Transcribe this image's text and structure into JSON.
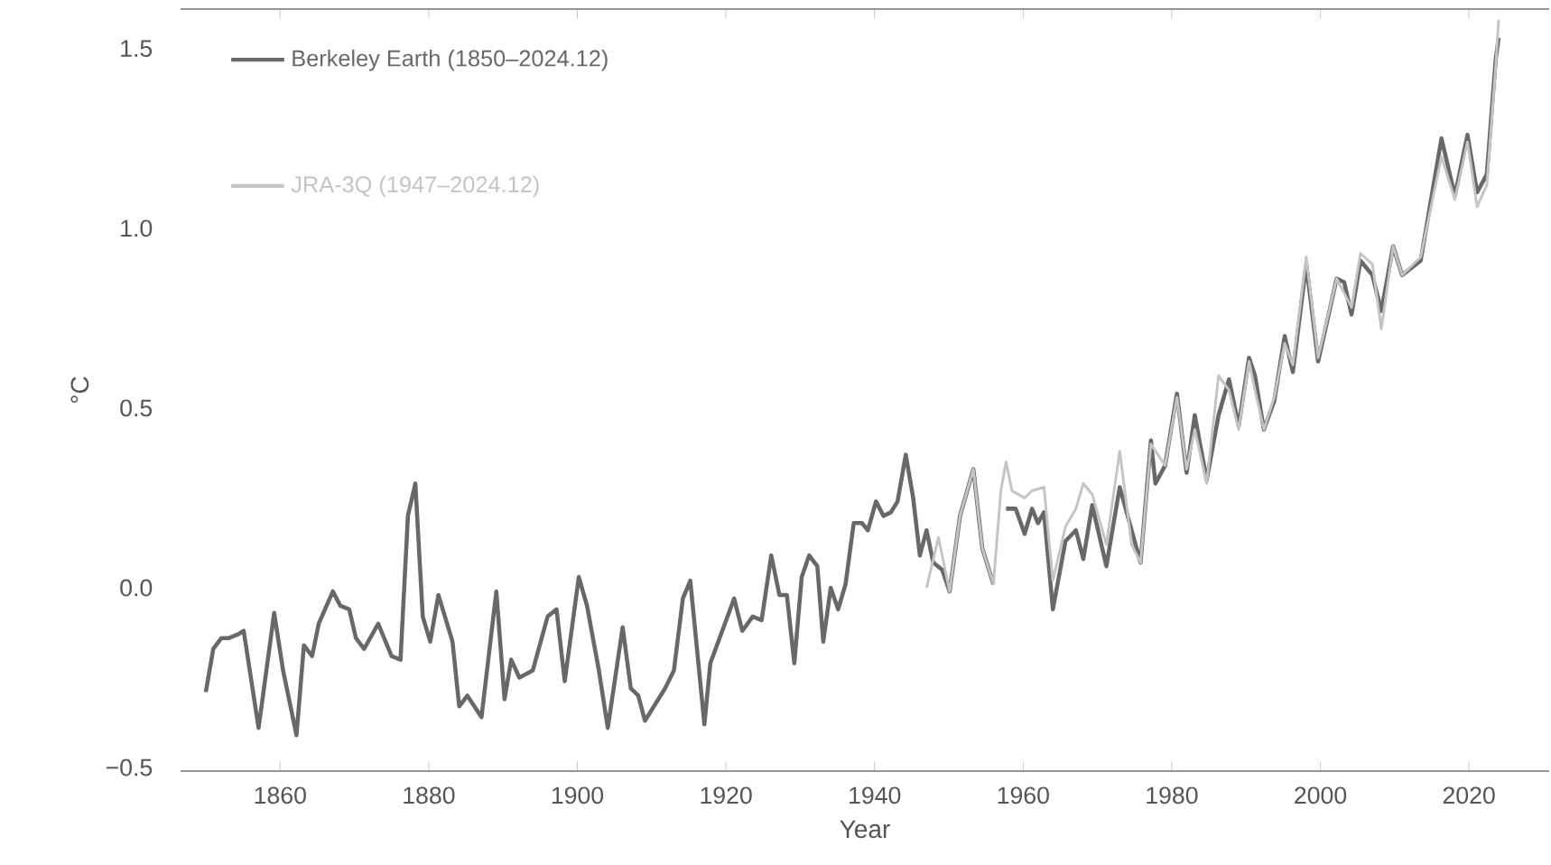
{
  "chart_data": {
    "type": "line",
    "xlabel": "Year",
    "ylabel": "°C",
    "xlim": [
      1846.6,
      2030.8
    ],
    "ylim": [
      -0.51,
      1.61
    ],
    "xticks": [
      1860,
      1880,
      1900,
      1920,
      1940,
      1960,
      1980,
      2000,
      2020
    ],
    "yticks": [
      {
        "value": -0.5,
        "label": "−0.5"
      },
      {
        "value": 0,
        "label": "0.0"
      },
      {
        "value": 0.5,
        "label": "0.5"
      },
      {
        "value": 1,
        "label": "1.0"
      },
      {
        "value": 1.5,
        "label": "1.5"
      }
    ],
    "legend": "top left",
    "series": [
      {
        "name": "Berkeley Earth (1850–2024.12)",
        "color": "#68686c",
        "x": [
          1850.0,
          1851.0,
          1852.1,
          1853.1,
          1854.3,
          1855.1,
          1857.1,
          1859.2,
          1860.4,
          1862.2,
          1863.2,
          1864.3,
          1865.2,
          1867.1,
          1868.1,
          1869.3,
          1870.2,
          1871.3,
          1873.2,
          1875.0,
          1876.2,
          1877.2,
          1878.2,
          1879.2,
          1880.2,
          1881.3,
          1883.2,
          1884.1,
          1885.2,
          1887.1,
          1889.1,
          1890.2,
          1891.1,
          1892.2,
          1894.0,
          1896.0,
          1897.2,
          1898.3,
          1900.2,
          1901.3,
          1902.9,
          1904.1,
          1906.1,
          1907.2,
          1908.2,
          1909.1,
          1911.8,
          1913.0,
          1914.2,
          1915.2,
          1917.1,
          1917.9,
          1921.1,
          1922.2,
          1923.6,
          1924.8,
          1926.1,
          1927.2,
          1928.2,
          1929.2,
          1930.2,
          1931.2,
          1932.3,
          1933.1,
          1934.1,
          1935.1,
          1936.1,
          1937.2,
          1938.3,
          1939.1,
          1940.2,
          1941.2,
          1942.2,
          1943.1,
          1944.2,
          1945.2,
          1946.1,
          1947.0,
          1947.9,
          1949.1,
          1950.1,
          1951.5,
          1953.3,
          1954.5,
          1956.0,
          1956.9,
          1957.7,
          1959.0,
          1960.2,
          1961.2,
          1962.0,
          1962.8,
          1964.0,
          1965.7,
          1967.1,
          1968.1,
          1969.3,
          1971.2,
          1973.0,
          1974.6,
          1975.8,
          1977.2,
          1977.8,
          1979.1,
          1980.7,
          1982.0,
          1983.1,
          1984.7,
          1986.3,
          1987.7,
          1989.0,
          1990.4,
          1991.2,
          1992.4,
          1993.8,
          1995.2,
          1996.3,
          1998.1,
          1999.7,
          2002.2,
          2003.2,
          2004.2,
          2005.4,
          2007.0,
          2008.2,
          2009.8,
          2011.0,
          2013.5,
          2016.3,
          2018.1,
          2019.8,
          2021.1,
          2022.4,
          2023.6,
          2024.0
        ],
        "values": [
          -0.29,
          -0.17,
          -0.14,
          -0.14,
          -0.13,
          -0.12,
          -0.39,
          -0.07,
          -0.23,
          -0.41,
          -0.16,
          -0.19,
          -0.1,
          -0.01,
          -0.05,
          -0.06,
          -0.14,
          -0.17,
          -0.1,
          -0.19,
          -0.2,
          0.2,
          0.29,
          -0.08,
          -0.15,
          -0.02,
          -0.15,
          -0.33,
          -0.3,
          -0.36,
          -0.01,
          -0.31,
          -0.2,
          -0.25,
          -0.23,
          -0.08,
          -0.06,
          -0.26,
          0.03,
          -0.05,
          -0.23,
          -0.39,
          -0.11,
          -0.28,
          -0.3,
          -0.37,
          -0.28,
          -0.23,
          -0.03,
          0.02,
          -0.38,
          -0.21,
          -0.03,
          -0.12,
          -0.08,
          -0.09,
          0.09,
          -0.02,
          -0.02,
          -0.21,
          0.03,
          0.09,
          0.06,
          -0.15,
          0.0,
          -0.06,
          0.01,
          0.18,
          0.18,
          0.16,
          0.24,
          0.2,
          0.21,
          0.24,
          0.37,
          0.25,
          0.09,
          0.16,
          0.07,
          0.05,
          -0.01,
          0.2,
          0.33,
          0.11,
          0.01,
          null,
          0.22,
          0.22,
          0.15,
          0.22,
          0.18,
          0.21,
          -0.06,
          0.13,
          0.16,
          0.08,
          0.23,
          0.06,
          0.28,
          0.16,
          0.07,
          0.41,
          0.29,
          0.34,
          0.54,
          0.32,
          0.48,
          0.3,
          0.48,
          0.58,
          0.45,
          0.64,
          0.59,
          0.44,
          0.52,
          0.7,
          0.6,
          0.9,
          0.63,
          0.86,
          0.85,
          0.76,
          0.91,
          0.87,
          0.77,
          0.95,
          0.87,
          0.91,
          1.25,
          1.09,
          1.26,
          1.1,
          1.15,
          1.47,
          1.53
        ]
      },
      {
        "name": "JRA-3Q (1947–2024.12)",
        "color": "#c4c4c4",
        "x": [
          1947.0,
          1948.6,
          1950.1,
          1951.5,
          1953.3,
          1954.5,
          1956.0,
          1957.0,
          1957.7,
          1958.5,
          1960.2,
          1961.2,
          1962.8,
          1964.0,
          1965.7,
          1967.1,
          1968.1,
          1969.3,
          1971.2,
          1973.0,
          1974.6,
          1975.8,
          1977.2,
          1979.1,
          1980.7,
          1982.0,
          1983.1,
          1984.7,
          1986.3,
          1987.7,
          1989.0,
          1990.4,
          1991.2,
          1992.4,
          1993.8,
          1995.2,
          1996.3,
          1998.1,
          1999.7,
          2002.2,
          2004.2,
          2005.4,
          2007.0,
          2008.2,
          2009.8,
          2011.0,
          2013.5,
          2016.3,
          2018.1,
          2019.8,
          2021.1,
          2022.4,
          2023.6,
          2024.0
        ],
        "values": [
          0.0,
          0.14,
          -0.01,
          0.2,
          0.33,
          0.11,
          0.01,
          0.27,
          0.35,
          0.27,
          0.25,
          0.27,
          0.28,
          0.02,
          0.17,
          0.22,
          0.29,
          0.26,
          0.12,
          0.38,
          0.12,
          0.07,
          0.4,
          0.34,
          0.53,
          0.33,
          0.44,
          0.29,
          0.59,
          0.55,
          0.44,
          0.63,
          0.55,
          0.44,
          0.53,
          0.68,
          0.62,
          0.92,
          0.64,
          0.86,
          0.78,
          0.93,
          0.9,
          0.72,
          0.95,
          0.87,
          0.92,
          1.2,
          1.08,
          1.24,
          1.06,
          1.12,
          1.45,
          1.58
        ]
      }
    ]
  }
}
